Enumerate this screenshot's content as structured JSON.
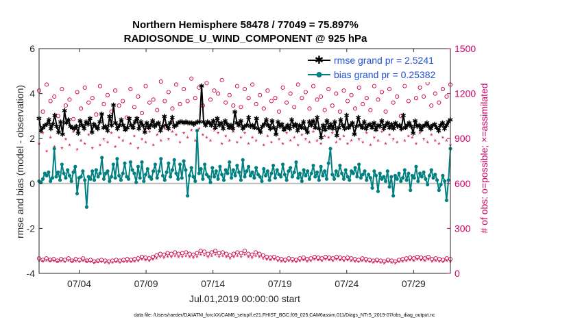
{
  "chart_data": {
    "type": "line",
    "title": "Northern Hemisphere 58478 / 77049 = 75.897%",
    "subtitle": "RADIOSONDE_U_WIND_COMPONENT @ 925 hPa",
    "xlabel": "Jul.01,2019 00:00:00 start",
    "ylabel": "rmse and bias (model - observation)",
    "ylabel_right": "# of obs: o=possible; ×=assimilated",
    "footnote": "data file: /Users/raeder/DAI/ATM_forcXX/CAM6_setup/f.e21.FHIST_BGC.f09_025.CAM6assim.011/Diags_NTrS_2019-07/obs_diag_output.nc",
    "xlim": [
      1,
      31.75
    ],
    "ylim": [
      -4,
      6
    ],
    "ylim_right": [
      0,
      1500
    ],
    "x_ticks": [
      4,
      9,
      14,
      19,
      24,
      29
    ],
    "x_tick_labels": [
      "07/04",
      "07/09",
      "07/14",
      "07/19",
      "07/24",
      "07/29"
    ],
    "y_ticks": [
      -4,
      -2,
      0,
      2,
      4,
      6
    ],
    "y_tick_labels": [
      "-4",
      "-2",
      "0",
      "2",
      "4",
      "6"
    ],
    "y_right_ticks": [
      0,
      300,
      600,
      900,
      1200,
      1500
    ],
    "y_right_tick_labels": [
      "0",
      "300",
      "600",
      "900",
      "1200",
      "1500"
    ],
    "legend": [
      "rmse grand pr = 2.5241",
      "bias grand pr = 0.25382"
    ],
    "legend_location": "top-right",
    "series": [
      {
        "name": "rmse",
        "color": "#000000",
        "values": [
          2.9,
          2.35,
          2.5,
          2.6,
          2.65,
          2.85,
          2.45,
          2.65,
          3.05,
          2.55,
          2.3,
          2.75,
          2.2,
          3.25,
          2.7,
          2.85,
          2.55,
          2.5,
          2.45,
          2.55,
          2.25,
          2.8,
          2.6,
          2.45,
          2.75,
          2.65,
          2.9,
          2.3,
          2.65,
          2.55,
          2.45,
          2.75,
          3.1,
          2.5,
          2.55,
          2.35,
          3.0,
          2.6,
          3.5,
          2.7,
          2.45,
          2.6,
          2.85,
          2.6,
          2.4,
          2.5,
          2.9,
          2.6,
          2.5,
          2.75,
          2.9,
          2.45,
          2.75,
          2.6,
          2.3,
          2.7,
          2.5,
          2.6,
          2.8,
          2.55,
          2.65,
          2.7,
          2.35,
          2.55,
          3.0,
          2.6,
          2.45,
          2.7,
          2.95,
          2.55,
          2.6,
          2.7,
          2.75,
          2.75,
          2.7,
          2.75,
          2.7,
          2.7,
          2.7,
          2.65,
          2.7,
          2.75,
          2.75,
          4.35,
          2.75,
          2.6,
          2.75,
          2.7,
          2.6,
          2.8,
          2.5,
          2.9,
          2.6,
          2.7,
          2.45,
          2.8,
          2.65,
          2.5,
          2.6,
          2.45,
          3.2,
          2.7,
          2.6,
          2.8,
          2.45,
          2.55,
          2.6,
          2.95,
          2.55,
          2.6,
          2.5,
          2.9,
          2.45,
          2.3,
          2.55,
          2.65,
          2.85,
          2.6,
          2.45,
          2.8,
          2.5,
          2.2,
          2.75,
          2.55,
          2.65,
          2.4,
          2.5,
          2.6,
          2.45,
          2.85,
          2.55,
          2.65,
          2.35,
          2.6,
          2.5,
          2.75,
          2.45,
          2.3,
          2.75,
          2.6,
          2.8,
          2.5,
          2.95,
          2.45,
          2.05,
          2.6,
          2.4,
          2.8,
          2.5,
          2.65,
          2.45,
          2.75,
          2.15,
          2.5,
          2.85,
          2.6,
          2.45,
          3.05,
          2.5,
          2.6,
          2.7,
          2.2,
          2.55,
          2.95,
          2.6,
          2.5,
          2.75,
          2.45,
          2.6,
          2.65,
          2.5,
          2.7,
          2.4,
          2.6,
          2.55,
          2.8,
          2.45,
          2.6,
          2.7,
          2.5,
          2.65,
          2.45,
          2.7,
          2.55,
          2.6,
          2.45,
          3.05,
          2.5,
          2.6,
          2.7,
          2.55,
          2.25,
          2.8,
          2.55,
          2.6,
          2.4,
          2.55,
          2.6,
          2.7,
          2.55,
          2.45,
          2.6,
          2.65,
          2.5,
          2.35,
          2.6,
          2.7,
          2.45,
          2.6,
          2.75,
          2.85
        ]
      },
      {
        "name": "bias",
        "color": "#008080",
        "values": [
          0.1,
          0.05,
          0.2,
          0.45,
          0.35,
          0.5,
          0.1,
          0.25,
          1.55,
          0.3,
          0.5,
          0.15,
          0.85,
          0.45,
          0.25,
          0.6,
          0.35,
          0.1,
          0.5,
          0.75,
          -0.45,
          0.25,
          0.3,
          0.55,
          0.15,
          -1.05,
          0.3,
          0.2,
          0.55,
          0.15,
          0.6,
          0.3,
          0.45,
          1.15,
          0.2,
          0.45,
          0.55,
          0.1,
          0.3,
          0.85,
          0.25,
          1.1,
          0.35,
          0.15,
          0.45,
          0.9,
          0.3,
          0.2,
          0.95,
          0.6,
          0.45,
          0.05,
          0.75,
          0.25,
          0.95,
          0.1,
          0.4,
          0.65,
          0.3,
          0.2,
          0.55,
          0.85,
          0.25,
          0.55,
          1.1,
          0.35,
          0.15,
          0.5,
          0.9,
          0.3,
          0.6,
          1.05,
          0.45,
          0.2,
          0.85,
          0.25,
          1.0,
          0.6,
          -0.55,
          0.35,
          0.7,
          0.3,
          0.1,
          2.35,
          0.45,
          0.65,
          0.2,
          0.85,
          0.4,
          0.3,
          0.05,
          0.7,
          0.3,
          0.55,
          0.2,
          0.75,
          0.4,
          0.15,
          0.6,
          0.45,
          0.95,
          0.25,
          0.6,
          0.35,
          0.8,
          0.5,
          0.15,
          1.05,
          0.3,
          0.55,
          0.75,
          0.35,
          0.5,
          0.25,
          0.7,
          0.4,
          0.3,
          0.1,
          0.65,
          0.35,
          0.55,
          0.15,
          0.45,
          0.8,
          0.25,
          0.6,
          0.4,
          0.3,
          0.85,
          0.4,
          0.15,
          0.55,
          0.7,
          0.3,
          0.5,
          0.95,
          0.25,
          0.45,
          0.1,
          0.6,
          0.35,
          0.55,
          0.2,
          0.45,
          0.8,
          0.3,
          0.5,
          0.15,
          0.75,
          0.35,
          0.55,
          0.2,
          0.9,
          1.55,
          0.4,
          0.2,
          0.55,
          0.35,
          0.8,
          0.45,
          0.2,
          0.6,
          0.3,
          0.15,
          0.55,
          0.45,
          0.7,
          0.3,
          0.85,
          0.25,
          0.4,
          0.55,
          0.15,
          0.4,
          0.25,
          -0.2,
          0.55,
          0.35,
          -0.35,
          0.45,
          0.2,
          0.3,
          0.1,
          0.55,
          -0.15,
          0.3,
          -0.55,
          0.35,
          0.2,
          0.45,
          0.1,
          0.25,
          0.6,
          0.15,
          0.45,
          -0.3,
          0.35,
          0.25,
          0.75,
          0.1,
          0.45,
          0.3,
          0.5,
          0.2,
          -0.05,
          0.35,
          0.6,
          0.25,
          0.4,
          0.15,
          -0.3,
          -0.05,
          0.35,
          0.1,
          -0.75,
          0.15,
          1.55
        ]
      },
      {
        "name": "obs possible",
        "axis": "right",
        "color": "#cc0044",
        "marker": "o",
        "values": [
          1220,
          1080,
          1260,
          1150,
          1180,
          1050,
          1230,
          1120,
          1160,
          1030,
          1210,
          1100,
          1240,
          1140,
          1170,
          1060,
          1250,
          1130,
          1190,
          1080,
          1220,
          1120,
          1150,
          1040,
          1230,
          1110,
          1180,
          1070,
          1250,
          1140,
          1160,
          1090,
          1280,
          1150,
          1210,
          1100,
          1260,
          1130,
          1230,
          1150,
          1300,
          1170,
          1240,
          1120,
          1270,
          1160,
          1220,
          1200,
          1290,
          1140,
          1190,
          1120,
          1250,
          1110,
          1230,
          1170,
          1260,
          1130,
          1190,
          1100,
          1220,
          1150,
          1170,
          1080,
          1240,
          1140,
          1200,
          1110,
          1260,
          1170,
          1210,
          1100,
          1250,
          1160,
          1180,
          1090,
          1230,
          1120,
          1200,
          1080,
          1220,
          1150,
          1190,
          1100,
          1240,
          1130,
          1170,
          1090,
          1250,
          1160,
          1210,
          1080,
          1230,
          1140,
          1180,
          1050,
          1250,
          1150,
          1290,
          1170,
          1240,
          1180,
          1270,
          1120,
          1200,
          1140,
          1230,
          1180,
          1260
        ]
      },
      {
        "name": "obs assimilated",
        "axis": "right",
        "color": "#cc0044",
        "marker": "*",
        "values": [
          860,
          930,
          810,
          900,
          840,
          950,
          830,
          890,
          850,
          940,
          820,
          880,
          860,
          920,
          830,
          960,
          850,
          890,
          870,
          930,
          840,
          900,
          880,
          950,
          860,
          910,
          830,
          890,
          870,
          940,
          850,
          920,
          880,
          960,
          890,
          940,
          920,
          870,
          930,
          900,
          950,
          880,
          960,
          920,
          900,
          880,
          950,
          930,
          860,
          910,
          880,
          940,
          870,
          900,
          930,
          860,
          900,
          880,
          940,
          850,
          910,
          870,
          920,
          890,
          860,
          930,
          880,
          900,
          850,
          920,
          890,
          870,
          940,
          880,
          860,
          910,
          900,
          930,
          870,
          890,
          910,
          860,
          880,
          920,
          890,
          870,
          930,
          850,
          900,
          880,
          940,
          860,
          920,
          890,
          870,
          950,
          880,
          910,
          900,
          860,
          930,
          890,
          870,
          920,
          880,
          860,
          900,
          880,
          850
        ]
      },
      {
        "name": "obs possible low",
        "axis": "right",
        "color": "#cc0044",
        "marker": "o",
        "values": [
          100,
          90,
          100,
          90,
          95,
          85,
          95,
          90,
          100,
          85,
          95,
          90,
          100,
          85,
          90,
          80,
          85,
          90,
          85,
          80,
          85,
          90,
          85,
          90,
          95,
          90,
          95,
          100,
          110,
          105,
          100,
          110,
          120,
          130,
          125,
          135,
          130,
          140,
          130,
          135,
          140,
          130,
          125,
          135,
          150,
          145,
          130,
          140,
          150,
          135,
          140,
          130,
          120,
          130,
          140,
          135,
          150,
          130,
          125,
          140,
          130,
          120,
          110,
          105,
          110,
          100,
          95,
          90,
          100,
          95,
          90,
          100,
          105,
          95,
          100,
          110,
          105,
          100,
          110,
          105,
          100,
          110,
          105,
          100,
          105,
          100,
          95,
          90,
          100,
          95,
          90,
          85,
          90,
          85,
          80,
          90,
          85,
          80,
          90,
          95,
          100,
          105,
          100,
          110,
          105,
          100,
          110,
          95,
          100,
          95,
          90,
          100,
          95
        ]
      },
      {
        "name": "obs assimilated low",
        "axis": "right",
        "color": "#cc0044",
        "marker": "*",
        "values": [
          80,
          75,
          80,
          75,
          78,
          70,
          75,
          72,
          80,
          70,
          75,
          72,
          78,
          70,
          72,
          65,
          68,
          70,
          66,
          62,
          66,
          70,
          66,
          70,
          72,
          70,
          74,
          78,
          86,
          82,
          78,
          86,
          94,
          102,
          98,
          106,
          102,
          110,
          102,
          106,
          110,
          102,
          98,
          106,
          118,
          114,
          102,
          110,
          118,
          106,
          110,
          102,
          94,
          102,
          110,
          106,
          118,
          102,
          98,
          110,
          102,
          94,
          86,
          82,
          86,
          78,
          74,
          70,
          78,
          74,
          70,
          78,
          82,
          74,
          78,
          86,
          82,
          78,
          86,
          82,
          78,
          86,
          82,
          78,
          82,
          78,
          74,
          70,
          78,
          74,
          70,
          66,
          70,
          66,
          62,
          70,
          66,
          62,
          70,
          74,
          78,
          82,
          78,
          86,
          82,
          78,
          86,
          74,
          78,
          74,
          70,
          78,
          74
        ]
      }
    ]
  }
}
